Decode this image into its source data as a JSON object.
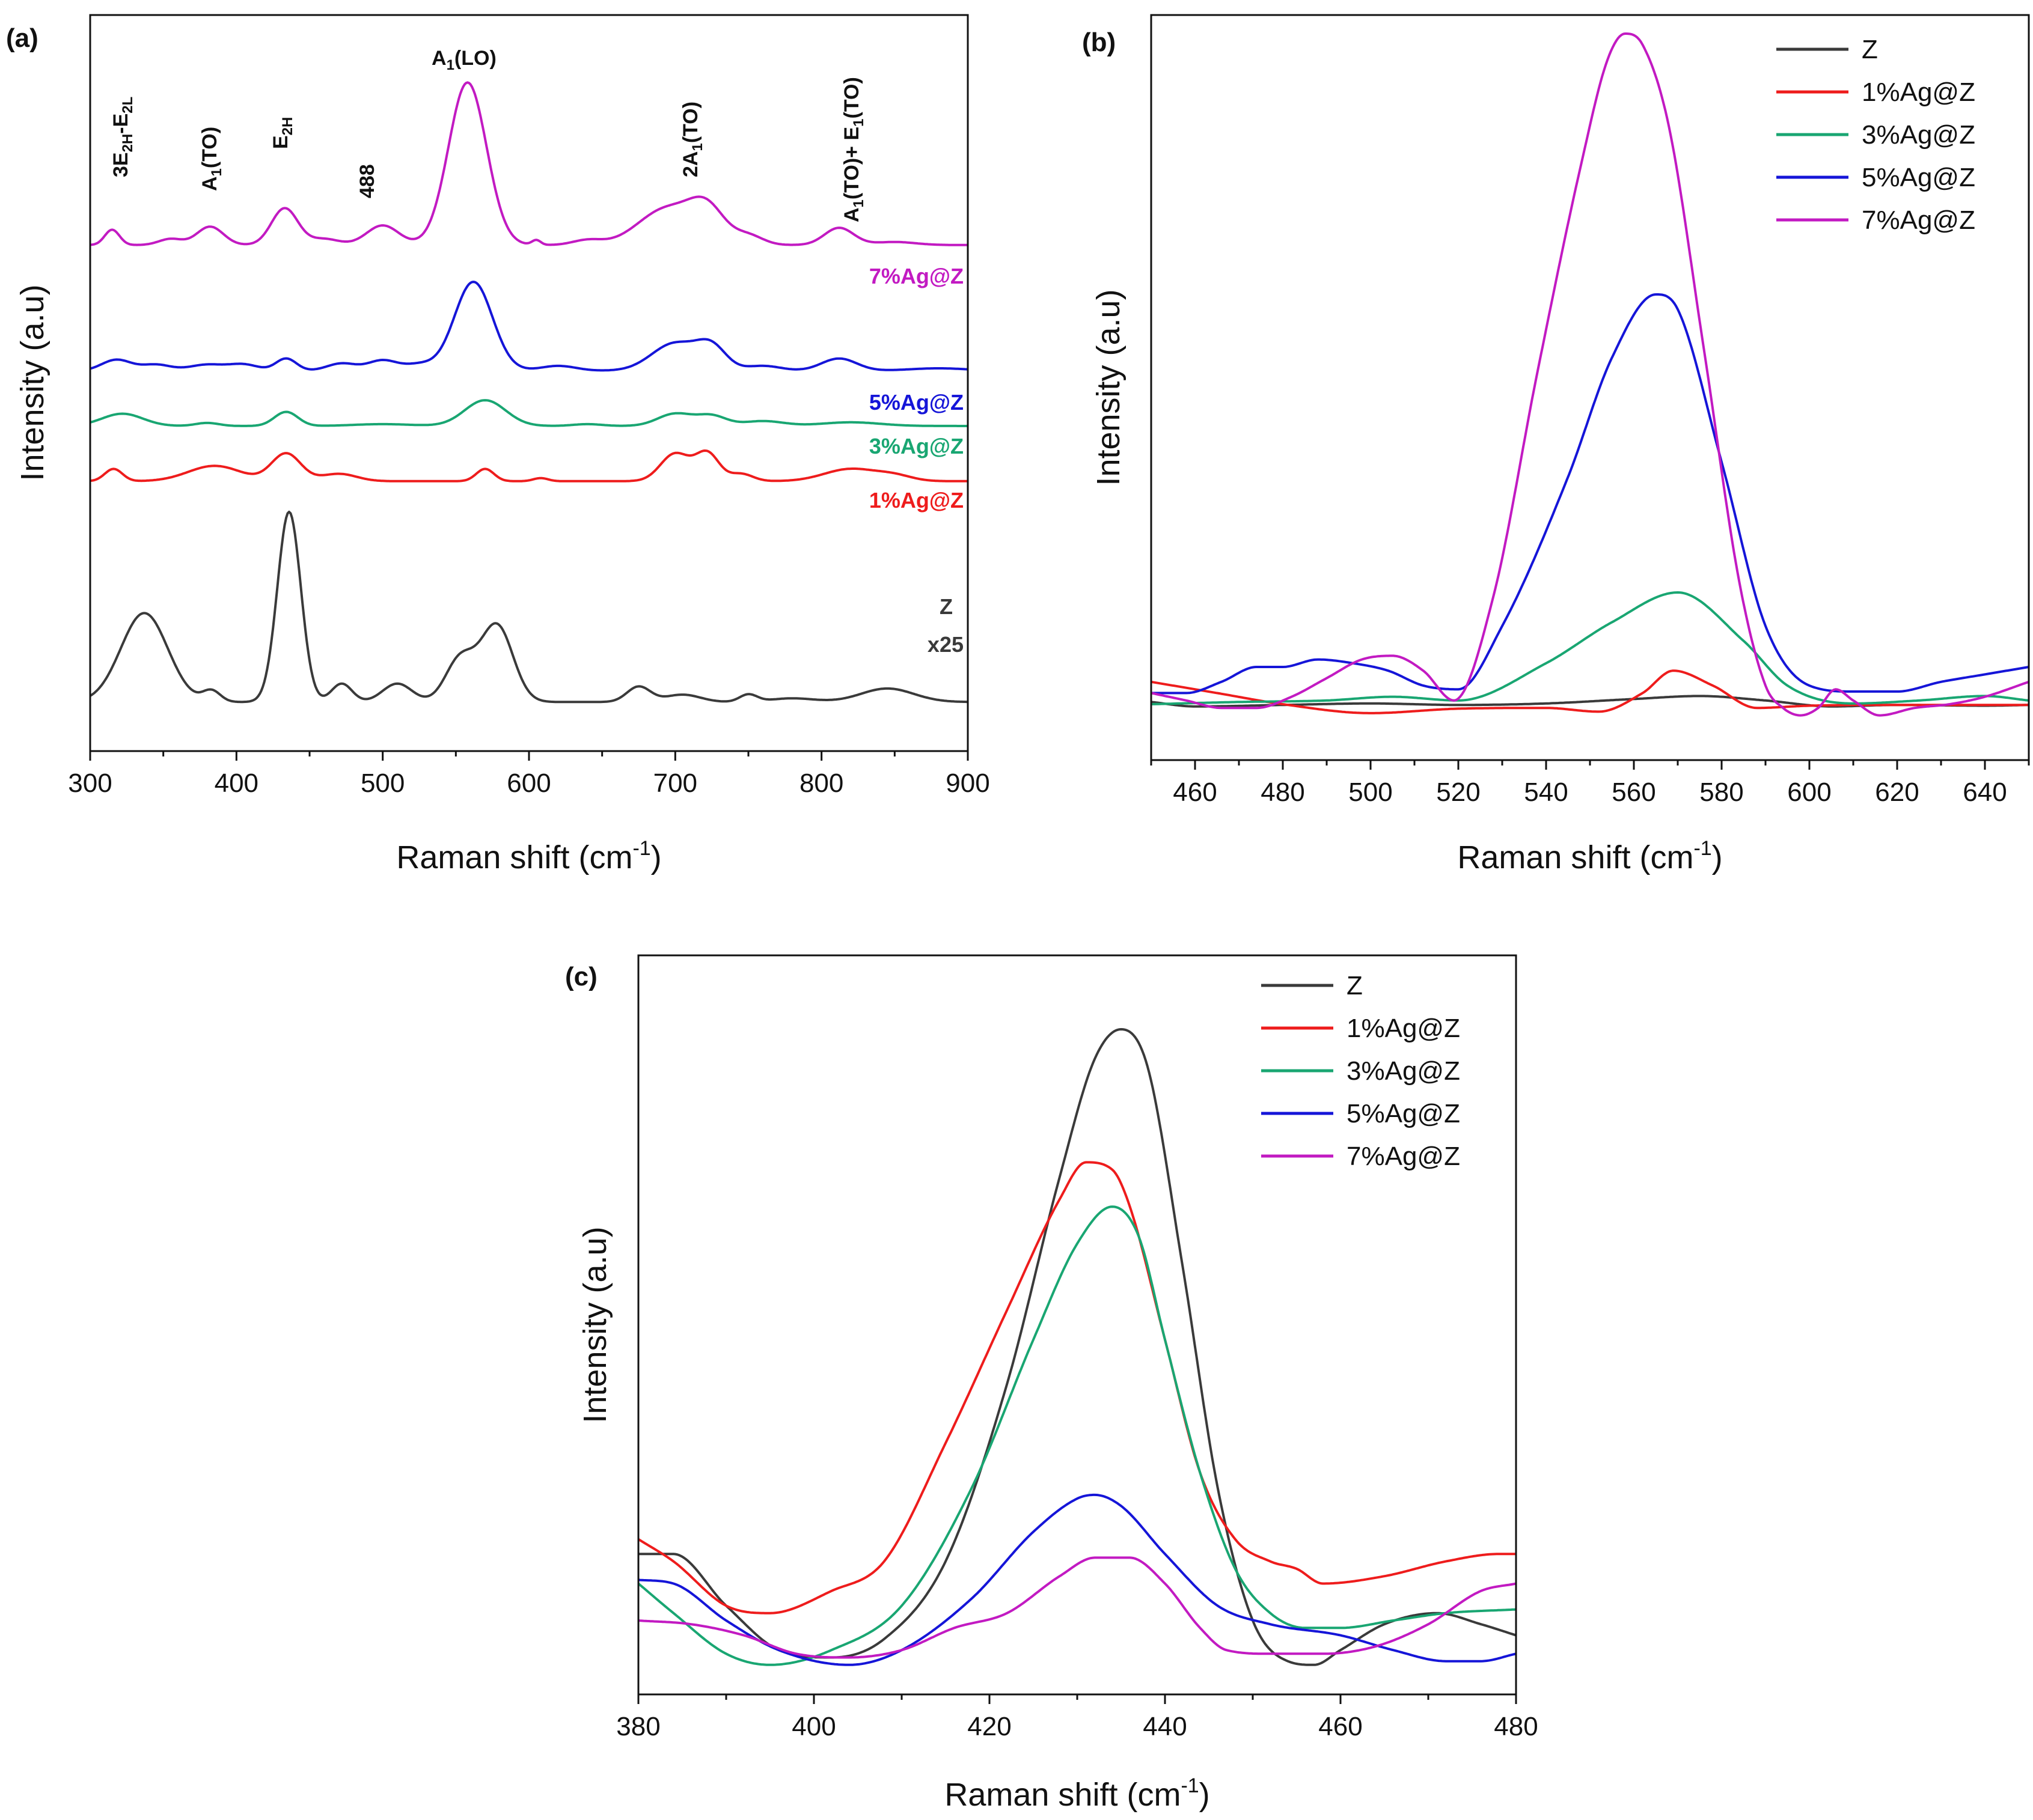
{
  "figure": {
    "panels": [
      "(a)",
      "(b)",
      "(c)"
    ]
  },
  "colors": {
    "Z": "#3a3a3a",
    "1%Ag@Z": "#ee1c1c",
    "3%Ag@Z": "#19a672",
    "5%Ag@Z": "#1515d8",
    "7%Ag@Z": "#c21ac2"
  },
  "chart_data": [
    {
      "panel": "(a)",
      "type": "line",
      "title": "",
      "xlabel": "Raman shift (cm",
      "xlabel_sup": "-1",
      "xlabel_close": ")",
      "ylabel": "Intensity (a.u)",
      "xlim": [
        300,
        900
      ],
      "xticks": [
        300,
        400,
        500,
        600,
        700,
        800,
        900
      ],
      "ylim": [
        0,
        12
      ],
      "stacked": true,
      "annotations": [
        "3E2H-E2L",
        "A1(TO)",
        "E2H",
        "488",
        "A1(LO)",
        "2A1(TO)",
        "A1(TO)+ E1(TO)"
      ],
      "sample_labels": [
        "7%Ag@Z",
        "5%Ag@Z",
        "3%Ag@Z",
        "1%Ag@Z",
        "Z",
        "x25"
      ],
      "series": [
        {
          "name": "Z",
          "offset": 0.8,
          "baseline": 0.0,
          "peaks": [
            [
              337,
              1.45,
              16
            ],
            [
              383,
              0.18,
              6
            ],
            [
              436,
              3.1,
              8
            ],
            [
              472,
              0.3,
              7
            ],
            [
              510,
              0.3,
              10
            ],
            [
              553,
              0.7,
              10
            ],
            [
              578,
              1.25,
              11
            ],
            [
              675,
              0.25,
              8
            ],
            [
              705,
              0.12,
              12
            ],
            [
              750,
              0.12,
              6
            ],
            [
              780,
              0.06,
              15
            ],
            [
              845,
              0.22,
              18
            ]
          ]
        },
        {
          "name": "1%Ag@Z",
          "offset": 4.4,
          "baseline": 0.0,
          "peaks": [
            [
              316,
              0.2,
              6
            ],
            [
              385,
              0.25,
              18
            ],
            [
              434,
              0.45,
              10
            ],
            [
              470,
              0.12,
              12
            ],
            [
              570,
              0.2,
              6
            ],
            [
              608,
              0.05,
              5
            ],
            [
              700,
              0.45,
              10
            ],
            [
              722,
              0.45,
              8
            ],
            [
              745,
              0.12,
              8
            ],
            [
              820,
              0.2,
              18
            ],
            [
              850,
              0.08,
              12
            ]
          ]
        },
        {
          "name": "3%Ag@Z",
          "offset": 5.3,
          "baseline": 0.0,
          "peaks": [
            [
              322,
              0.2,
              14
            ],
            [
              380,
              0.05,
              8
            ],
            [
              434,
              0.23,
              8
            ],
            [
              500,
              0.03,
              20
            ],
            [
              570,
              0.42,
              14
            ],
            [
              640,
              0.03,
              10
            ],
            [
              700,
              0.2,
              12
            ],
            [
              725,
              0.16,
              10
            ],
            [
              760,
              0.08,
              14
            ],
            [
              820,
              0.06,
              20
            ]
          ]
        },
        {
          "name": "5%Ag@Z",
          "offset": 6.2,
          "baseline": 0.0,
          "peaks": [
            [
              318,
              0.18,
              10
            ],
            [
              345,
              0.1,
              10
            ],
            [
              380,
              0.1,
              12
            ],
            [
              405,
              0.1,
              10
            ],
            [
              434,
              0.2,
              7
            ],
            [
              472,
              0.12,
              10
            ],
            [
              500,
              0.17,
              10
            ],
            [
              525,
              0.1,
              10
            ],
            [
              562,
              1.45,
              13
            ],
            [
              620,
              0.08,
              12
            ],
            [
              700,
              0.45,
              16
            ],
            [
              725,
              0.35,
              10
            ],
            [
              760,
              0.08,
              12
            ],
            [
              812,
              0.2,
              12
            ],
            [
              880,
              0.04,
              20
            ]
          ]
        },
        {
          "name": "7%Ag@Z",
          "offset": 8.25,
          "baseline": 0.0,
          "peaks": [
            [
              315,
              0.25,
              5
            ],
            [
              355,
              0.1,
              8
            ],
            [
              382,
              0.3,
              9
            ],
            [
              433,
              0.6,
              9
            ],
            [
              460,
              0.1,
              10
            ],
            [
              500,
              0.32,
              11
            ],
            [
              558,
              2.65,
              13
            ],
            [
              605,
              0.08,
              3
            ],
            [
              640,
              0.08,
              10
            ],
            [
              695,
              0.6,
              20
            ],
            [
              722,
              0.5,
              12
            ],
            [
              750,
              0.15,
              10
            ],
            [
              812,
              0.28,
              10
            ],
            [
              850,
              0.05,
              14
            ]
          ]
        }
      ]
    },
    {
      "panel": "(b)",
      "type": "line",
      "title": "",
      "xlabel": "Raman shift (cm",
      "xlabel_sup": "-1",
      "xlabel_close": ")",
      "ylabel": "Intensity (a.u)",
      "xlim": [
        450,
        650
      ],
      "xticks": [
        460,
        480,
        500,
        520,
        540,
        560,
        580,
        600,
        620,
        640
      ],
      "ylim": [
        0,
        100
      ],
      "legend": [
        "Z",
        "1%Ag@Z",
        "3%Ag@Z",
        "5%Ag@Z",
        "7%Ag@Z"
      ],
      "legend_position": "top-right",
      "series": [
        {
          "name": "Z",
          "x": [
            450,
            460,
            480,
            500,
            520,
            540,
            560,
            575,
            590,
            605,
            620,
            640,
            650
          ],
          "y": [
            7.8,
            7.2,
            7.4,
            7.6,
            7.4,
            7.6,
            8.2,
            8.6,
            8.0,
            7.2,
            7.4,
            7.3,
            7.4
          ]
        },
        {
          "name": "1%Ag@Z",
          "x": [
            450,
            465,
            480,
            500,
            520,
            540,
            552,
            562,
            569,
            578,
            588,
            600,
            620,
            640,
            650
          ],
          "y": [
            10.5,
            9.0,
            7.5,
            6.3,
            6.9,
            7.0,
            6.5,
            9.0,
            12.0,
            10.0,
            7.0,
            7.3,
            7.4,
            7.4,
            7.4
          ]
        },
        {
          "name": "3%Ag@Z",
          "x": [
            450,
            470,
            490,
            505,
            520,
            540,
            555,
            570,
            585,
            595,
            610,
            625,
            640,
            650
          ],
          "y": [
            7.5,
            7.8,
            8.0,
            8.5,
            8.0,
            13.0,
            18.5,
            22.5,
            16.0,
            10.0,
            7.6,
            8.0,
            8.6,
            8.0
          ]
        },
        {
          "name": "5%Ag@Z",
          "x": [
            450,
            458,
            466,
            474,
            480,
            488,
            496,
            504,
            512,
            520,
            530,
            545,
            555,
            565,
            570,
            580,
            590,
            600,
            610,
            620,
            630,
            640,
            650
          ],
          "y": [
            9.0,
            9.0,
            10.5,
            12.5,
            12.5,
            13.5,
            13.0,
            12.0,
            10.0,
            9.5,
            18.0,
            38.0,
            54.0,
            62.5,
            60.5,
            40.0,
            18.0,
            10.0,
            9.2,
            9.2,
            10.5,
            11.5,
            12.5
          ]
        },
        {
          "name": "7%Ag@Z",
          "x": [
            450,
            458,
            466,
            474,
            482,
            490,
            498,
            505,
            512,
            519,
            528,
            538,
            548,
            554,
            558,
            562,
            568,
            576,
            584,
            590,
            594,
            598,
            602,
            606,
            610,
            616,
            624,
            632,
            640,
            650
          ],
          "y": [
            9.0,
            8.0,
            7.0,
            7.0,
            8.5,
            11.0,
            13.5,
            14.0,
            12.0,
            8.0,
            22.0,
            52.0,
            80.0,
            94.0,
            97.5,
            96.0,
            85.0,
            55.0,
            24.0,
            10.0,
            7.0,
            6.0,
            7.0,
            9.5,
            8.0,
            6.0,
            7.0,
            7.5,
            8.5,
            10.5
          ]
        }
      ]
    },
    {
      "panel": "(c)",
      "type": "line",
      "title": "",
      "xlabel": "Raman shift (cm",
      "xlabel_sup": "-1",
      "xlabel_close": ")",
      "ylabel": "Intensity (a.u)",
      "xlim": [
        380,
        480
      ],
      "xticks": [
        380,
        400,
        420,
        440,
        460,
        480
      ],
      "ylim": [
        0,
        100
      ],
      "legend": [
        "Z",
        "1%Ag@Z",
        "3%Ag@Z",
        "5%Ag@Z",
        "7%Ag@Z"
      ],
      "legend_position": "top-right",
      "series": [
        {
          "name": "Z",
          "x": [
            380,
            384,
            390,
            396,
            402,
            408,
            415,
            422,
            428,
            432,
            435,
            438,
            442,
            446,
            450,
            454,
            457,
            460,
            465,
            471,
            476,
            480
          ],
          "y": [
            19.0,
            19.0,
            12.0,
            6.0,
            5.0,
            7.5,
            18.0,
            42.0,
            70.0,
            86.0,
            90.0,
            85.0,
            58.0,
            28.0,
            10.0,
            4.5,
            4.0,
            6.0,
            9.5,
            11.0,
            9.5,
            8.0
          ]
        },
        {
          "name": "1%Ag@Z",
          "x": [
            380,
            384,
            390,
            395,
            402,
            408,
            415,
            422,
            428,
            431,
            434,
            436,
            440,
            444,
            448,
            452,
            455,
            458,
            465,
            472,
            478,
            480
          ],
          "y": [
            21.0,
            18.0,
            12.0,
            11.0,
            14.0,
            18.0,
            34.0,
            52.0,
            67.0,
            72.0,
            71.0,
            66.0,
            48.0,
            30.0,
            21.0,
            18.0,
            17.0,
            15.0,
            16.0,
            18.0,
            19.0,
            19.0
          ]
        },
        {
          "name": "3%Ag@Z",
          "x": [
            380,
            384,
            390,
            395,
            402,
            410,
            418,
            425,
            430,
            434,
            437,
            440,
            444,
            448,
            452,
            456,
            460,
            466,
            472,
            480
          ],
          "y": [
            15.0,
            11.0,
            5.5,
            4.0,
            6.0,
            12.0,
            28.0,
            48.0,
            61.0,
            66.0,
            62.0,
            48.0,
            30.0,
            17.0,
            11.0,
            9.0,
            9.0,
            10.0,
            11.0,
            11.5
          ]
        },
        {
          "name": "5%Ag@Z",
          "x": [
            380,
            384,
            390,
            396,
            404,
            410,
            418,
            425,
            430,
            432,
            435,
            440,
            446,
            452,
            460,
            466,
            472,
            476,
            480
          ],
          "y": [
            15.5,
            15.0,
            10.0,
            6.0,
            4.0,
            6.0,
            13.0,
            22.0,
            26.5,
            27.0,
            25.5,
            19.0,
            12.0,
            9.5,
            8.0,
            6.0,
            4.5,
            4.5,
            5.5
          ]
        },
        {
          "name": "7%Ag@Z",
          "x": [
            380,
            386,
            392,
            398,
            404,
            410,
            416,
            422,
            428,
            432,
            436,
            440,
            444,
            447,
            452,
            458,
            464,
            470,
            476,
            480
          ],
          "y": [
            10.0,
            9.5,
            8.0,
            5.5,
            5.0,
            6.0,
            9.0,
            11.0,
            16.0,
            18.5,
            18.5,
            15.0,
            9.0,
            6.0,
            5.5,
            5.5,
            6.5,
            9.5,
            14.0,
            15.0
          ]
        }
      ]
    }
  ]
}
